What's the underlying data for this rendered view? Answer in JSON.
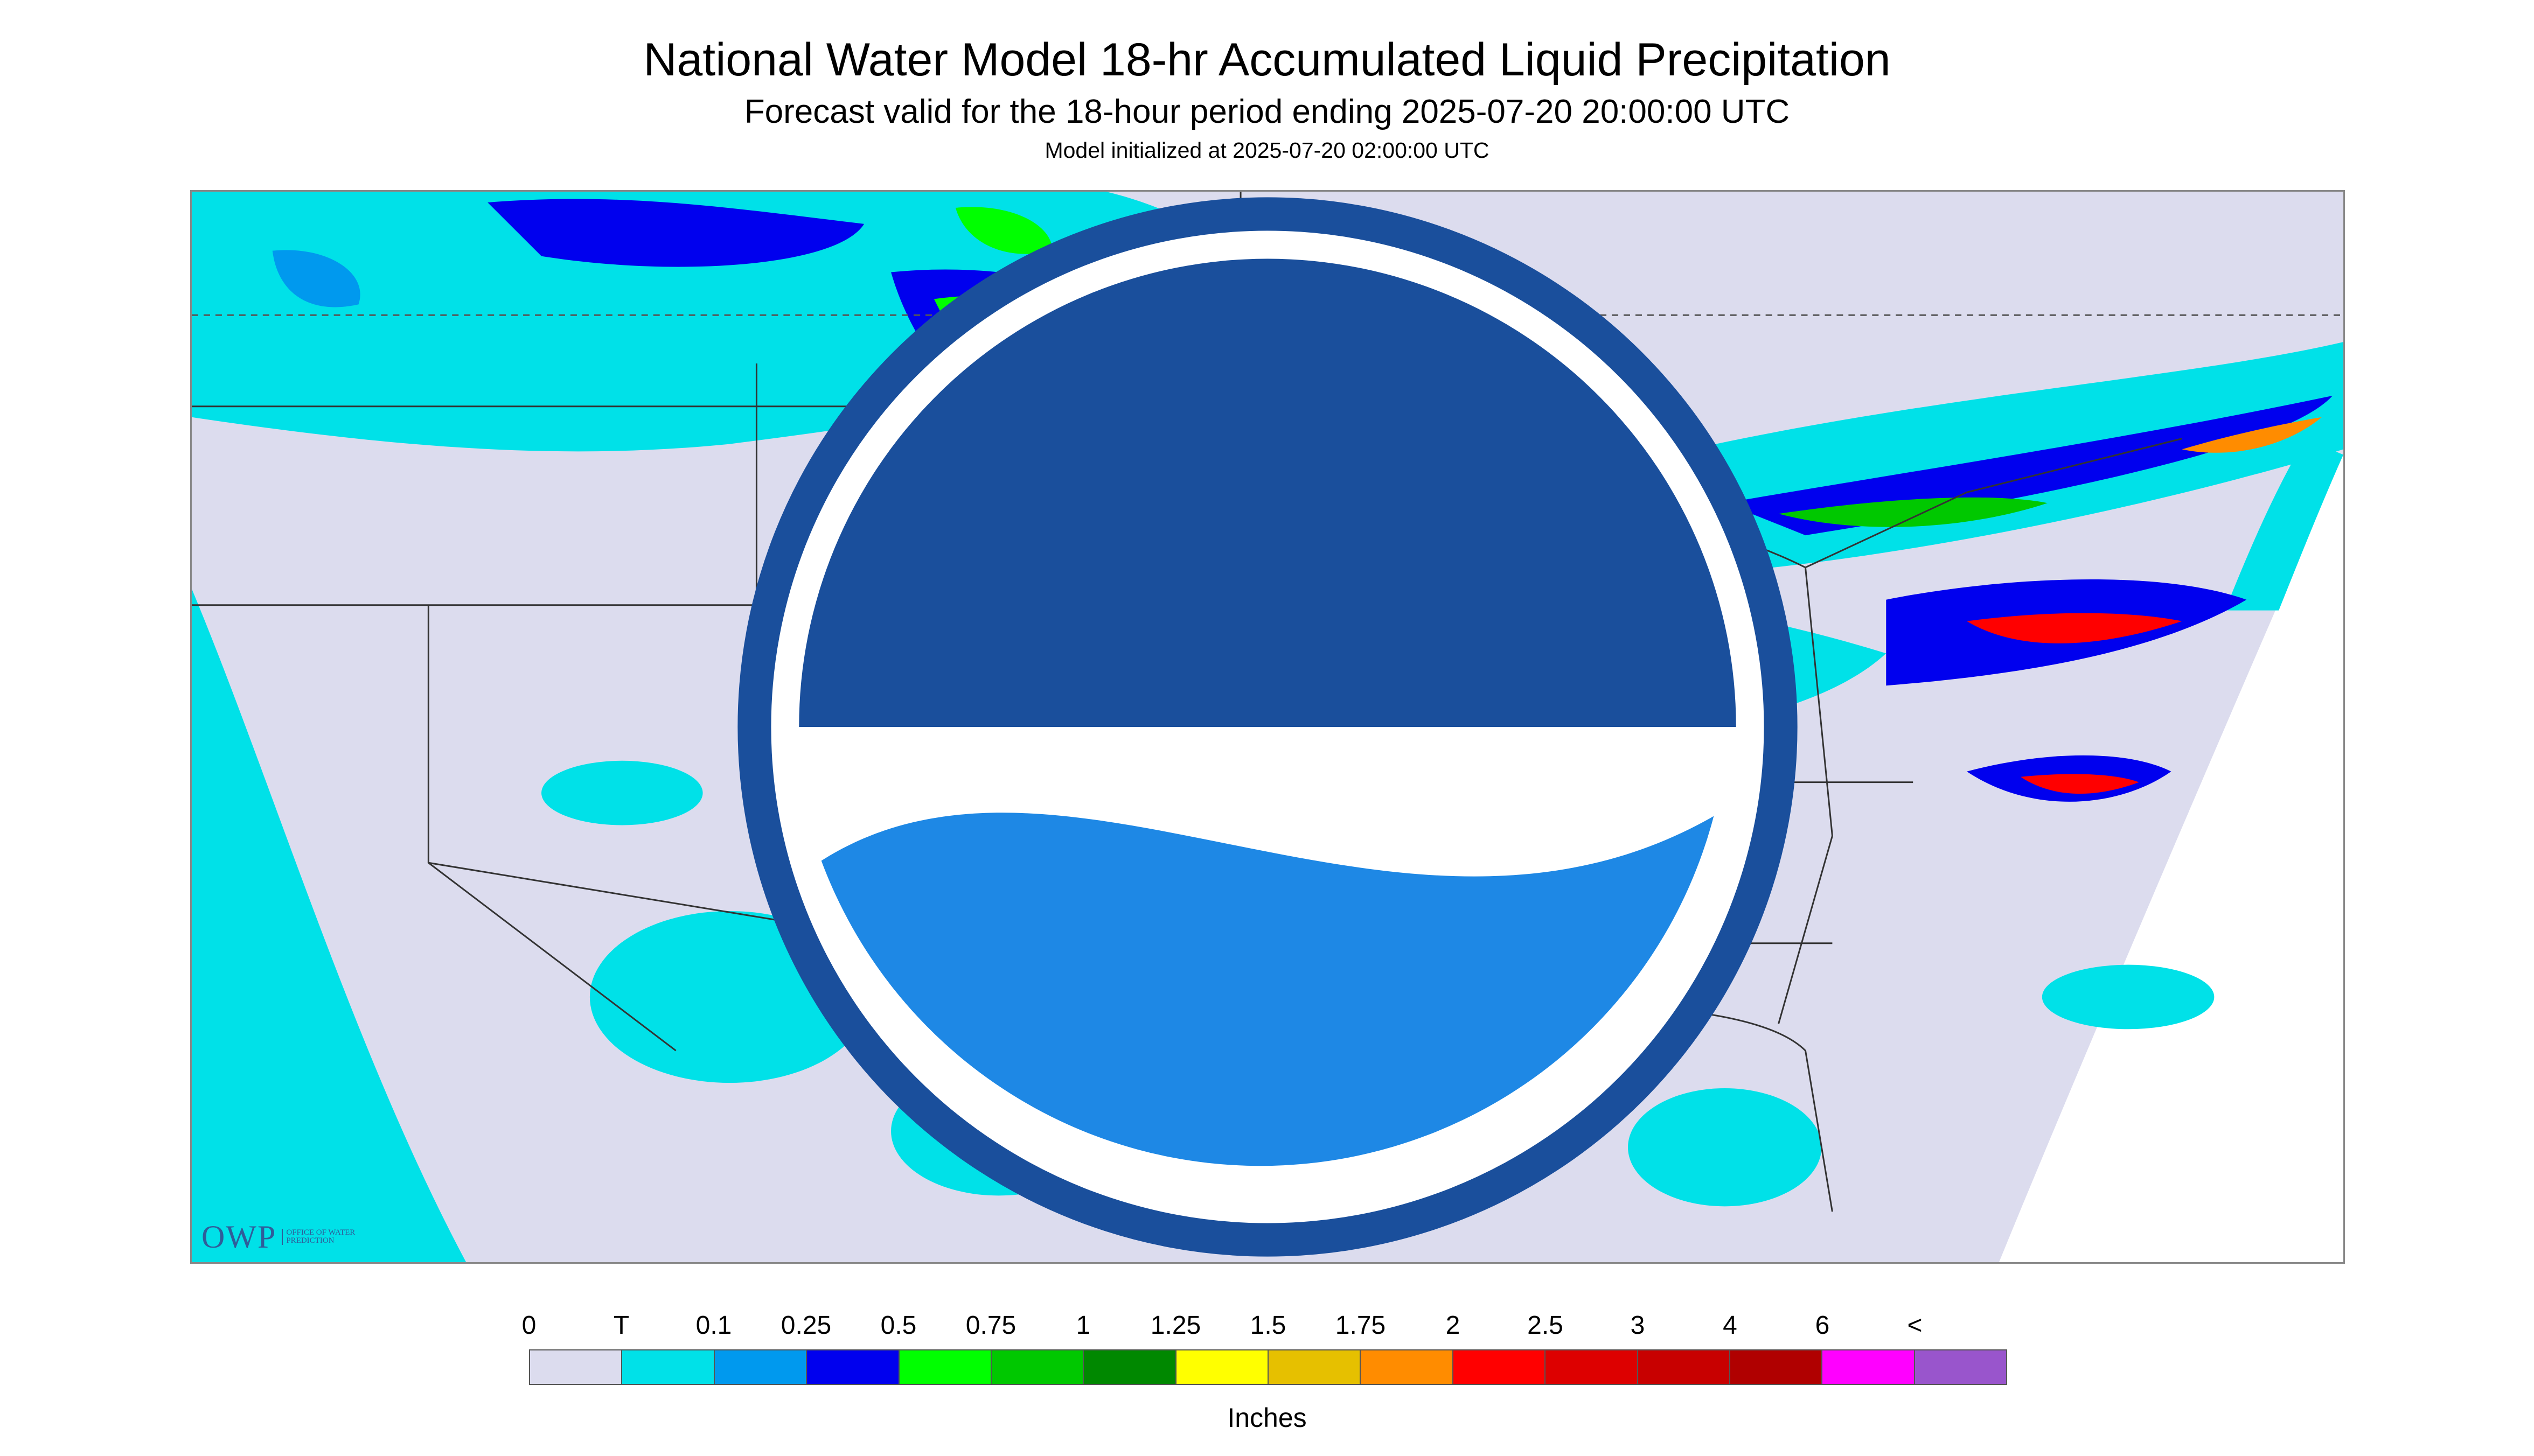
{
  "title": "National Water Model 18-hr Accumulated Liquid Precipitation",
  "subtitle": "Forecast valid for the 18-hour period ending 2025-07-20 20:00:00 UTC",
  "init_line": "Model initialized at 2025-07-20 02:00:00 UTC",
  "logos": {
    "owp_letters": "OWP",
    "owp_sub": "OFFICE OF WATER PREDICTION",
    "noaa": "NOAA"
  },
  "colors": {
    "background": "#dcdcee",
    "trace": "#00e1e8",
    "heavy_red": "#ff0000"
  },
  "legend": {
    "units": "Inches",
    "labels": [
      "0",
      "T",
      "0.1",
      "0.25",
      "0.5",
      "0.75",
      "1",
      "1.25",
      "1.5",
      "1.75",
      "2",
      "2.5",
      "3",
      "4",
      "6",
      "<"
    ],
    "colors": [
      "#dcdcee",
      "#00e1e8",
      "#0099ee",
      "#0000ee",
      "#00ff00",
      "#00c800",
      "#008800",
      "#ffff00",
      "#e6c000",
      "#ff8c00",
      "#ff0000",
      "#dd0000",
      "#c80000",
      "#b00000",
      "#ff00ff",
      "#9955cc"
    ]
  }
}
